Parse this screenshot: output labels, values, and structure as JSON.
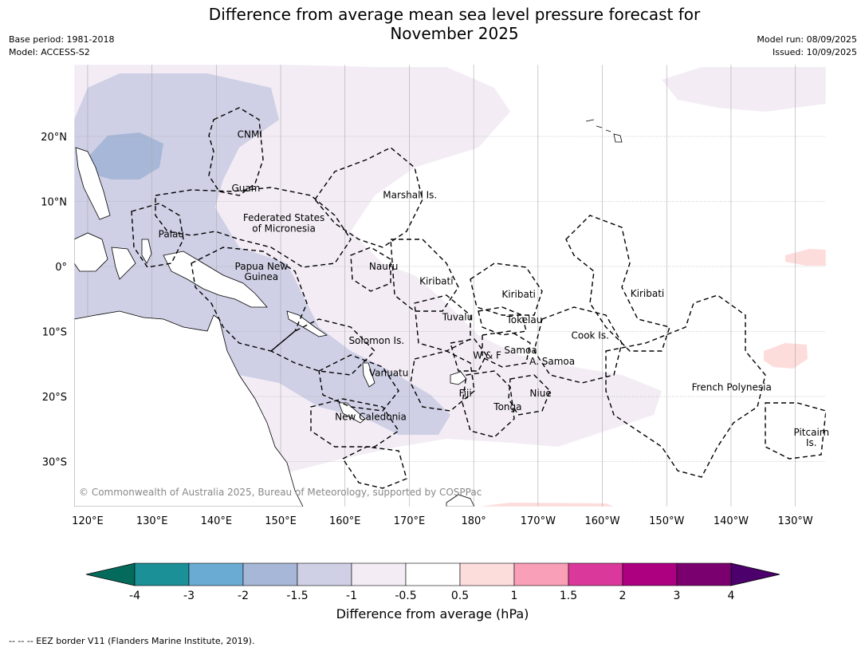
{
  "title": "Difference from average mean sea level pressure forecast for\nNovember 2025",
  "meta": {
    "base_period": "Base period: 1981-2018",
    "model": "Model: ACCESS-S2",
    "model_run": "Model run: 08/09/2025",
    "issued": "Issued: 10/09/2025"
  },
  "copyright": "© Commonwealth of Australia 2025, Bureau of Meteorology, supported by COSPPac",
  "lat_ticks": [
    {
      "lat": 20,
      "label": "20°N"
    },
    {
      "lat": 10,
      "label": "10°N"
    },
    {
      "lat": 0,
      "label": "0°"
    },
    {
      "lat": -10,
      "label": "10°S"
    },
    {
      "lat": -20,
      "label": "20°S"
    },
    {
      "lat": -30,
      "label": "30°S"
    }
  ],
  "lon_ticks": [
    {
      "lon": 120,
      "label": "120°E"
    },
    {
      "lon": 130,
      "label": "130°E"
    },
    {
      "lon": 140,
      "label": "140°E"
    },
    {
      "lon": 150,
      "label": "150°E"
    },
    {
      "lon": 160,
      "label": "160°E"
    },
    {
      "lon": 170,
      "label": "170°E"
    },
    {
      "lon": 180,
      "label": "180°"
    },
    {
      "lon": 190,
      "label": "170°W"
    },
    {
      "lon": 200,
      "label": "160°W"
    },
    {
      "lon": 210,
      "label": "150°W"
    },
    {
      "lon": 220,
      "label": "140°W"
    },
    {
      "lon": 230,
      "label": "130°W"
    }
  ],
  "regions": [
    {
      "name": "CNMI",
      "lon": 145.2,
      "lat": 20.3
    },
    {
      "name": "Guam",
      "lon": 144.6,
      "lat": 12.0
    },
    {
      "name": "Marshall Is.",
      "lon": 170.1,
      "lat": 11.0
    },
    {
      "name": "Federated States",
      "lon": 150.5,
      "lat": 7.5
    },
    {
      "name": "of Micronesia",
      "lon": 150.5,
      "lat": 5.8
    },
    {
      "name": "Palau",
      "lon": 133.0,
      "lat": 5.0
    },
    {
      "name": "Papua New",
      "lon": 147.0,
      "lat": 0.0
    },
    {
      "name": "Guinea",
      "lon": 147.0,
      "lat": -1.6
    },
    {
      "name": "Nauru",
      "lon": 166.0,
      "lat": 0.0
    },
    {
      "name": "Kiribati",
      "lon": 174.2,
      "lat": -2.3
    },
    {
      "name": "Kiribati",
      "lon": 187.0,
      "lat": -4.3
    },
    {
      "name": "Kiribati",
      "lon": 207.0,
      "lat": -4.2
    },
    {
      "name": "Tuvalu",
      "lon": 177.5,
      "lat": -7.8
    },
    {
      "name": "Tokelau",
      "lon": 187.9,
      "lat": -8.2
    },
    {
      "name": "Cook Is.",
      "lon": 198.1,
      "lat": -10.6
    },
    {
      "name": "Solomon Is.",
      "lon": 164.9,
      "lat": -11.4
    },
    {
      "name": "Samoa",
      "lon": 187.3,
      "lat": -12.9
    },
    {
      "name": "W & F",
      "lon": 182.1,
      "lat": -13.7
    },
    {
      "name": "A. Samoa",
      "lon": 192.2,
      "lat": -14.6
    },
    {
      "name": "Vanuatu",
      "lon": 166.8,
      "lat": -16.4
    },
    {
      "name": "Fiji",
      "lon": 178.7,
      "lat": -19.5
    },
    {
      "name": "Niue",
      "lon": 190.4,
      "lat": -19.5
    },
    {
      "name": "French Polynesia",
      "lon": 220.1,
      "lat": -18.6
    },
    {
      "name": "Tonga",
      "lon": 185.3,
      "lat": -21.6
    },
    {
      "name": "New Caledonia",
      "lon": 164.0,
      "lat": -23.1
    },
    {
      "name": "Pitcairn",
      "lon": 232.5,
      "lat": -25.5
    },
    {
      "name": "Is.",
      "lon": 232.5,
      "lat": -27.1
    }
  ],
  "colorbar": {
    "boundaries": [
      "-4",
      "-3",
      "-2",
      "-1.5",
      "-1",
      "-0.5",
      "0.5",
      "1",
      "1.5",
      "2",
      "3",
      "4"
    ],
    "colors": [
      "#1b9096",
      "#6aabd4",
      "#a7b7d7",
      "#cfd0e5",
      "#f3ecf5",
      "#ffffff",
      "#fddcdc",
      "#f99fb7",
      "#db389b",
      "#ad0080",
      "#7b006f"
    ],
    "under_color": "#046b5c",
    "over_color": "#4c006b",
    "label": "Difference from average (hPa)"
  },
  "legend_line": "--  --  -- EEZ border V11 (Flanders Marine Institute, 2019)."
}
